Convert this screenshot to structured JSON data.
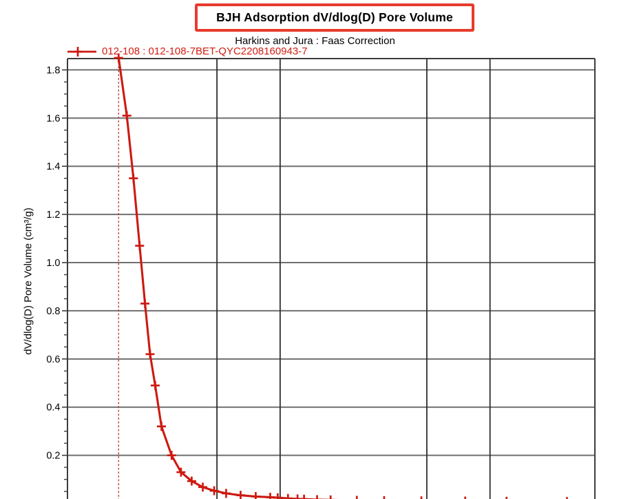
{
  "header": {
    "title": "BJH Adsorption dV/dlog(D) Pore Volume",
    "subtitle": "Harkins and Jura : Faas Correction"
  },
  "legend": {
    "label": "012-108 : 012-108-7BET-QYC2208160943-7",
    "marker": "plus",
    "position": "top-left"
  },
  "colors": {
    "background": "#ffffff",
    "text": "#000000",
    "title_border": "#e73b2c",
    "legend_text": "#d21d12",
    "series": "#cc1a10",
    "reference_line": "#b23830",
    "h_grid": "#6f6f6f",
    "v_grid": "#2d2d2d",
    "frame": "#3c3c3c"
  },
  "chart_data": {
    "type": "line",
    "title": "BJH Adsorption dV/dlog(D) Pore Volume",
    "subtitle": "Harkins and Jura : Faas Correction",
    "ylabel": "dV/dlog(D) Pore Volume (cm³/g)",
    "xlabel": "",
    "x_axis_note": "x-axis tick labels are cropped below the bottom edge of the screenshot; x values are estimated positions on the log axis",
    "x_scale": "log",
    "x_visible_range": [
      0.97,
      316
    ],
    "x_gridline_values": [
      5,
      10,
      50,
      100
    ],
    "reference_line_x": 1.7,
    "grid": true,
    "legend_position": "top-left",
    "y_ticks": [
      1.8,
      1.6,
      1.4,
      1.2,
      1.0,
      0.8,
      0.6,
      0.4,
      0.2
    ],
    "y_tick_labels": [
      "1.8",
      "1.6",
      "1.4",
      "1.2",
      "1.0",
      "0.8",
      "0.6",
      "0.4",
      "0.2"
    ],
    "y_minor_step": 0.05,
    "y_top_value": 1.847,
    "ylim_visible": [
      0.015,
      1.847
    ],
    "series": [
      {
        "name": "012-108 : 012-108-7BET-QYC2208160943-7",
        "marker": "plus",
        "color": "#cc1a10",
        "points": [
          [
            1.7,
            1.85
          ],
          [
            1.86,
            1.61
          ],
          [
            2.0,
            1.35
          ],
          [
            2.14,
            1.07
          ],
          [
            2.27,
            0.83
          ],
          [
            2.4,
            0.62
          ],
          [
            2.54,
            0.49
          ],
          [
            2.72,
            0.32
          ],
          [
            3.04,
            0.2
          ],
          [
            3.37,
            0.13
          ],
          [
            3.79,
            0.093
          ],
          [
            4.28,
            0.068
          ],
          [
            4.85,
            0.053
          ],
          [
            5.53,
            0.042
          ],
          [
            6.48,
            0.034
          ],
          [
            7.65,
            0.029
          ],
          [
            8.97,
            0.026
          ],
          [
            9.74,
            0.024
          ],
          [
            10.9,
            0.021
          ],
          [
            12.1,
            0.019
          ],
          [
            13.0,
            0.018
          ],
          [
            15.0,
            0.016
          ],
          [
            17.4,
            0.015
          ],
          [
            23.2,
            0.013
          ],
          [
            31.3,
            0.012
          ],
          [
            47.1,
            0.011
          ],
          [
            76.2,
            0.01
          ],
          [
            119.9,
            0.009
          ],
          [
            232.6,
            0.008
          ]
        ]
      }
    ]
  }
}
